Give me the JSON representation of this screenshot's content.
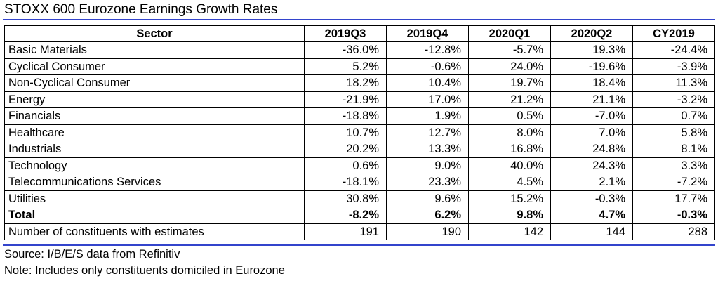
{
  "title": "STOXX 600 Eurozone Earnings Growth Rates",
  "table": {
    "headers": [
      "Sector",
      "2019Q3",
      "2019Q4",
      "2020Q1",
      "2020Q2",
      "CY2019"
    ],
    "rows": [
      {
        "label": "Basic Materials",
        "values": [
          "-36.0%",
          "-12.8%",
          "-5.7%",
          "19.3%",
          "-24.4%"
        ]
      },
      {
        "label": "Cyclical Consumer",
        "values": [
          "5.2%",
          "-0.6%",
          "24.0%",
          "-19.6%",
          "-3.9%"
        ]
      },
      {
        "label": "Non-Cyclical Consumer",
        "values": [
          "18.2%",
          "10.4%",
          "19.7%",
          "18.4%",
          "11.3%"
        ]
      },
      {
        "label": "Energy",
        "values": [
          "-21.9%",
          "17.0%",
          "21.2%",
          "21.1%",
          "-3.2%"
        ]
      },
      {
        "label": "Financials",
        "values": [
          "-18.8%",
          "1.9%",
          "0.5%",
          "-7.0%",
          "0.7%"
        ]
      },
      {
        "label": "Healthcare",
        "values": [
          "10.7%",
          "12.7%",
          "8.0%",
          "7.0%",
          "5.8%"
        ]
      },
      {
        "label": "Industrials",
        "values": [
          "20.2%",
          "13.3%",
          "16.8%",
          "24.8%",
          "8.1%"
        ]
      },
      {
        "label": "Technology",
        "values": [
          "0.6%",
          "9.0%",
          "40.0%",
          "24.3%",
          "3.3%"
        ]
      },
      {
        "label": "Telecommunications Services",
        "values": [
          "-18.1%",
          "23.3%",
          "4.5%",
          "2.1%",
          "-7.2%"
        ]
      },
      {
        "label": "Utilities",
        "values": [
          "30.8%",
          "9.6%",
          "15.2%",
          "-0.3%",
          "17.7%"
        ]
      },
      {
        "label": "Total",
        "values": [
          "-8.2%",
          "6.2%",
          "9.8%",
          "4.7%",
          "-0.3%"
        ]
      },
      {
        "label": "Number of constituents with estimates",
        "values": [
          "191",
          "190",
          "142",
          "144",
          "288"
        ]
      }
    ]
  },
  "footer": {
    "source": "Source: I/B/E/S data from Refinitiv",
    "note": "Note: Includes only constituents domiciled in Eurozone"
  },
  "colors": {
    "rule": "#3344cc"
  }
}
